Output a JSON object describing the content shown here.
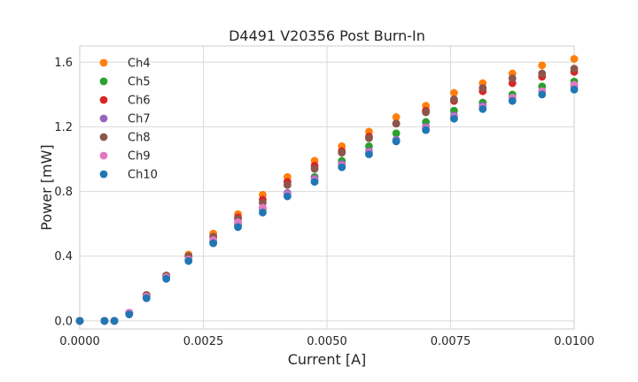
{
  "chart_data": {
    "type": "scatter",
    "title": "D4491 V20356 Post Burn-In",
    "xlabel": "Current [A]",
    "ylabel": "Power [mW]",
    "xlim": [
      0.0,
      0.01
    ],
    "ylim": [
      -0.05,
      1.7
    ],
    "x_ticks": [
      "0.0000",
      "0.0025",
      "0.0050",
      "0.0075",
      "0.0100"
    ],
    "y_ticks": [
      "0.0",
      "0.4",
      "0.8",
      "1.2",
      "1.6"
    ],
    "grid": true,
    "legend_position": "upper-left",
    "x": [
      0.0,
      0.0005,
      0.0007,
      0.001,
      0.00135,
      0.00175,
      0.0022,
      0.0027,
      0.0032,
      0.0037,
      0.0042,
      0.00475,
      0.0053,
      0.00585,
      0.0064,
      0.007,
      0.00757,
      0.00815,
      0.00875,
      0.00935,
      0.01
    ],
    "series": [
      {
        "name": "Ch4",
        "color": "#ff7f0e",
        "values": [
          0.0,
          0.0,
          0.0,
          0.05,
          0.16,
          0.28,
          0.41,
          0.54,
          0.66,
          0.78,
          0.89,
          0.99,
          1.08,
          1.17,
          1.26,
          1.33,
          1.41,
          1.47,
          1.53,
          1.58,
          1.62
        ]
      },
      {
        "name": "Ch5",
        "color": "#2ca02c",
        "values": [
          0.0,
          0.0,
          0.0,
          0.05,
          0.15,
          0.27,
          0.38,
          0.49,
          0.59,
          0.69,
          0.79,
          0.89,
          0.99,
          1.08,
          1.16,
          1.23,
          1.3,
          1.35,
          1.4,
          1.45,
          1.48
        ]
      },
      {
        "name": "Ch6",
        "color": "#d62728",
        "values": [
          0.0,
          0.0,
          0.0,
          0.05,
          0.16,
          0.28,
          0.4,
          0.52,
          0.64,
          0.75,
          0.86,
          0.96,
          1.05,
          1.14,
          1.22,
          1.3,
          1.36,
          1.42,
          1.47,
          1.51,
          1.54
        ]
      },
      {
        "name": "Ch7",
        "color": "#9467bd",
        "values": [
          0.0,
          0.0,
          0.0,
          0.05,
          0.15,
          0.27,
          0.38,
          0.49,
          0.6,
          0.7,
          0.79,
          0.88,
          0.97,
          1.05,
          1.12,
          1.2,
          1.27,
          1.33,
          1.38,
          1.42,
          1.45
        ]
      },
      {
        "name": "Ch8",
        "color": "#8c564b",
        "values": [
          0.0,
          0.0,
          0.0,
          0.05,
          0.16,
          0.28,
          0.4,
          0.52,
          0.63,
          0.73,
          0.84,
          0.94,
          1.04,
          1.13,
          1.22,
          1.29,
          1.37,
          1.44,
          1.5,
          1.53,
          1.56
        ]
      },
      {
        "name": "Ch9",
        "color": "#e377c2",
        "values": [
          0.0,
          0.0,
          0.0,
          0.05,
          0.15,
          0.27,
          0.38,
          0.5,
          0.61,
          0.7,
          0.78,
          0.87,
          0.96,
          1.04,
          1.11,
          1.19,
          1.26,
          1.32,
          1.38,
          1.42,
          1.46
        ]
      },
      {
        "name": "Ch10",
        "color": "#1f77b4",
        "values": [
          0.0,
          0.0,
          0.0,
          0.04,
          0.14,
          0.26,
          0.37,
          0.48,
          0.58,
          0.67,
          0.77,
          0.86,
          0.95,
          1.03,
          1.11,
          1.18,
          1.25,
          1.31,
          1.36,
          1.4,
          1.43
        ]
      }
    ]
  }
}
